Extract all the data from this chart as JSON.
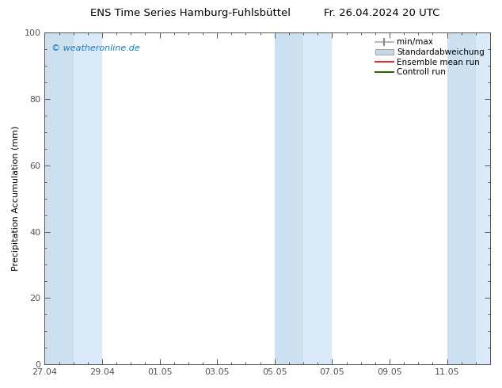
{
  "title_left": "ENS Time Series Hamburg-Fuhlsbüttel",
  "title_right": "Fr. 26.04.2024 20 UTC",
  "ylabel": "Precipitation Accumulation (mm)",
  "ylim": [
    0,
    100
  ],
  "yticks": [
    0,
    20,
    40,
    60,
    80,
    100
  ],
  "xtick_positions": [
    0,
    2,
    4,
    6,
    8,
    10,
    12,
    14
  ],
  "xtick_labels": [
    "27.04",
    "29.04",
    "01.05",
    "03.05",
    "05.05",
    "07.05",
    "09.05",
    "11.05"
  ],
  "x_min": 0,
  "x_max": 15.5,
  "watermark": "© weatheronline.de",
  "watermark_color": "#1a7abf",
  "legend_entries": [
    "min/max",
    "Standardabweichung",
    "Ensemble mean run",
    "Controll run"
  ],
  "band_color": "#d6e8f7",
  "shaded_regions": [
    [
      0,
      1
    ],
    [
      1,
      2
    ],
    [
      8,
      9
    ],
    [
      9,
      10
    ],
    [
      14,
      15
    ],
    [
      15,
      15.5
    ]
  ],
  "shaded_region_alpha": [
    0.7,
    0.4,
    0.7,
    0.4,
    0.7,
    0.4
  ],
  "background_color": "#ffffff",
  "spine_color": "#555555",
  "tick_color": "#555555",
  "title_fontsize": 9.5,
  "label_fontsize": 8,
  "tick_fontsize": 8
}
